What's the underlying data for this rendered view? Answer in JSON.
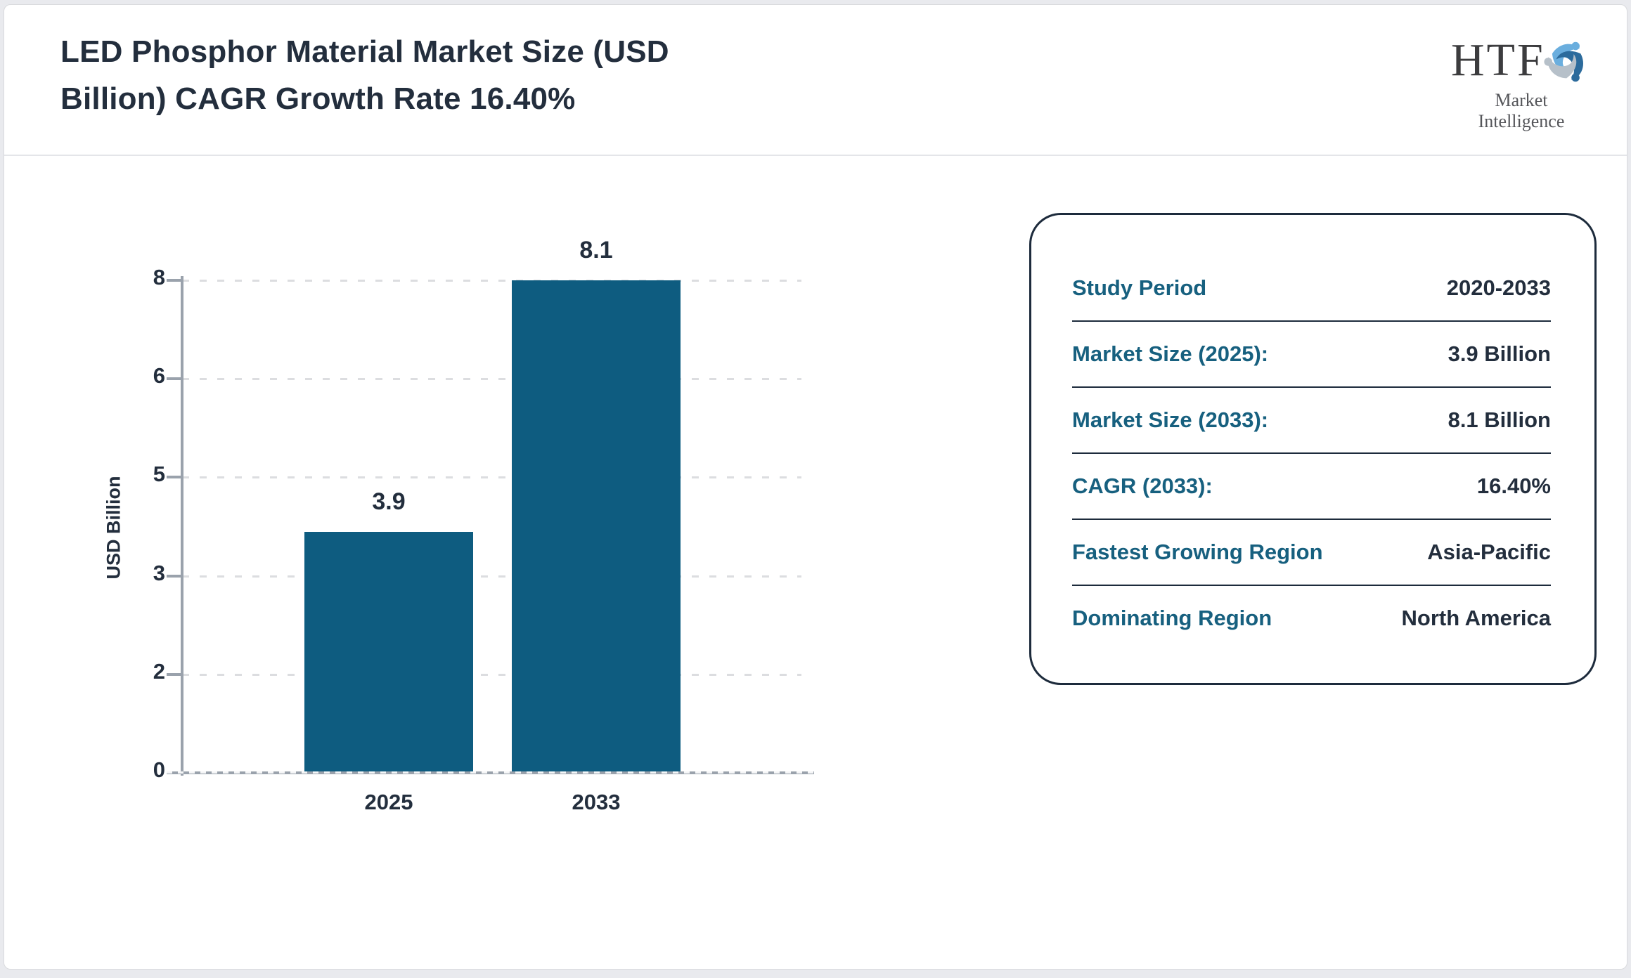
{
  "page": {
    "background_color": "#e9eaee",
    "card_color": "#ffffff"
  },
  "header": {
    "title_line1": "LED Phosphor Material Market Size (USD",
    "title_line2": "Billion) CAGR Growth Rate 16.40%",
    "title_full": "LED Phosphor Material Market Size (USD Billion) CAGR Growth Rate 16.40%",
    "logo": {
      "text": "HTF",
      "subtext": "Market Intelligence",
      "icon": "swirl-figures-icon",
      "icon_colors": [
        "#6aaede",
        "#b6c0c9",
        "#2c6b9c"
      ]
    }
  },
  "chart_data": {
    "type": "bar",
    "title": "LED Phosphor Material Market Size (USD Billion) CAGR Growth Rate 16.40%",
    "categories": [
      "2025",
      "2033"
    ],
    "values": [
      3.9,
      8.1
    ],
    "bar_labels": [
      "3.9",
      "8.1"
    ],
    "xlabel": "",
    "ylabel": "USD Billion",
    "yticks": [
      0,
      2,
      3,
      5,
      6,
      8
    ],
    "ylim": [
      0,
      8
    ],
    "grid": "horizontal-dashed",
    "legend_position": "none",
    "bar_color": "#0e5c80",
    "axis_color": "#9aa2ac",
    "text_color": "#232e3d"
  },
  "info_panel": {
    "label_color": "#17607f",
    "value_color": "#232e3d",
    "border_color": "#1d2b3c",
    "rows": [
      {
        "label": "Study Period",
        "value": "2020-2033"
      },
      {
        "label": "Market Size (2025):",
        "value": "3.9 Billion"
      },
      {
        "label": "Market Size (2033):",
        "value": "8.1 Billion"
      },
      {
        "label": "CAGR (2033):",
        "value": "16.40%"
      },
      {
        "label": "Fastest Growing Region",
        "value": "Asia-Pacific"
      },
      {
        "label": "Dominating Region",
        "value": "North America"
      }
    ]
  }
}
